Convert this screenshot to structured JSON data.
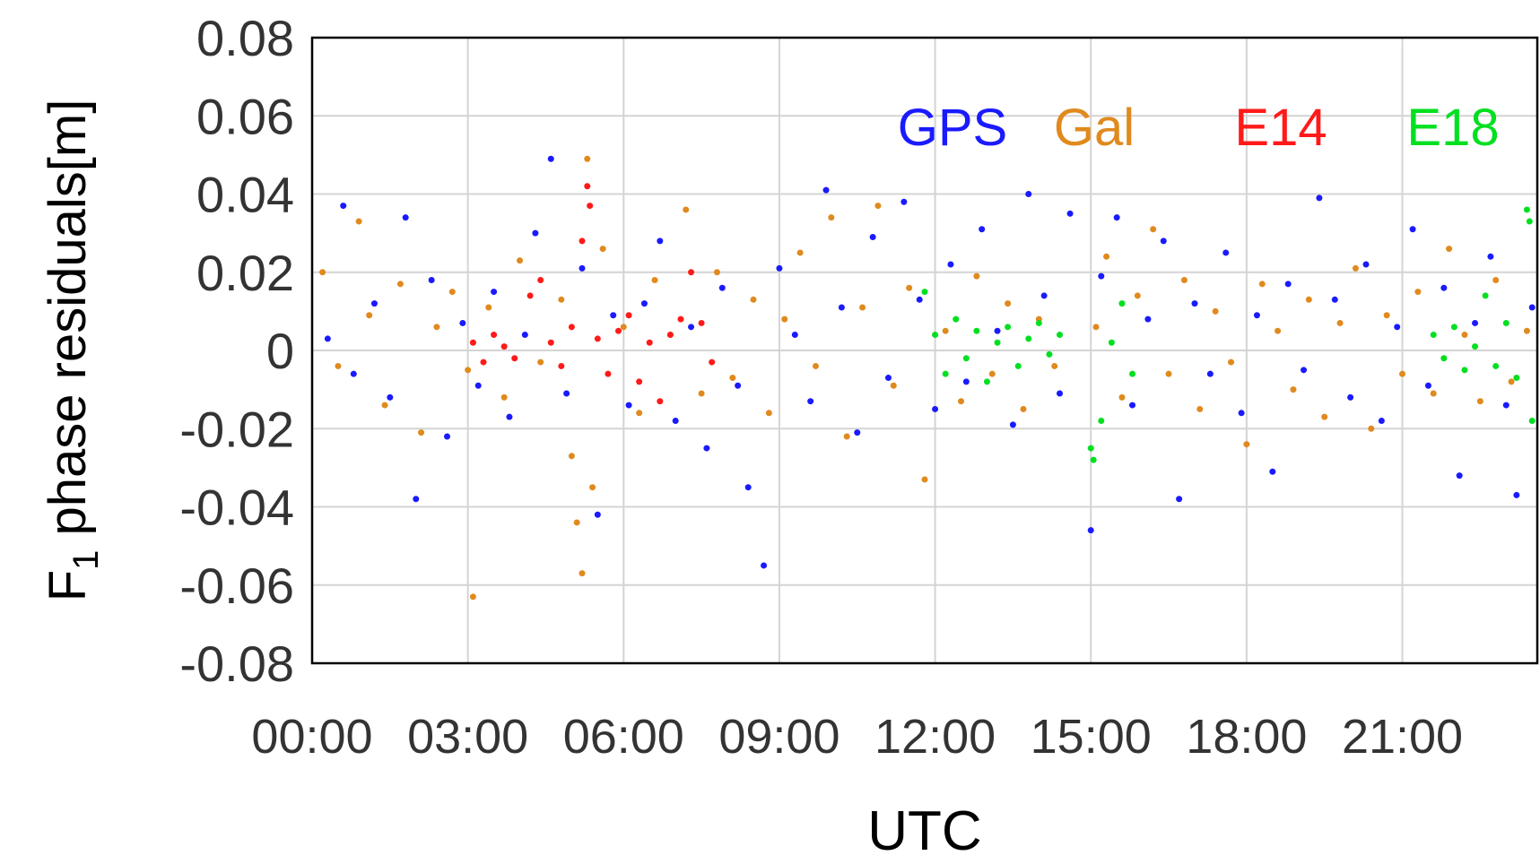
{
  "chart_data": {
    "type": "scatter",
    "title": "",
    "xlabel": "UTC",
    "ylabel": "F",
    "ylabel_subscript": "1",
    "ylabel_suffix": " phase residuals[m]",
    "x_unit": "hours",
    "xlim": [
      0,
      23.6
    ],
    "ylim": [
      -0.08,
      0.08
    ],
    "xticks": [
      0,
      3,
      6,
      9,
      12,
      15,
      18,
      21
    ],
    "xtick_labels": [
      "00:00",
      "03:00",
      "06:00",
      "09:00",
      "12:00",
      "15:00",
      "18:00",
      "21:00"
    ],
    "yticks": [
      -0.08,
      -0.06,
      -0.04,
      -0.02,
      0,
      0.02,
      0.04,
      0.06,
      0.08
    ],
    "ytick_labels": [
      "-0.08",
      "-0.06",
      "-0.04",
      "-0.02",
      "0",
      "0.02",
      "0.04",
      "0.06",
      "0.08"
    ],
    "grid": true,
    "legend_position": "top-right",
    "series": [
      {
        "name": "GPS",
        "color": "#1a1aff",
        "points": [
          [
            0.3,
            0.003
          ],
          [
            0.6,
            0.037
          ],
          [
            0.8,
            -0.006
          ],
          [
            1.2,
            0.012
          ],
          [
            1.5,
            -0.012
          ],
          [
            1.8,
            0.034
          ],
          [
            2.0,
            -0.038
          ],
          [
            2.3,
            0.018
          ],
          [
            2.6,
            -0.022
          ],
          [
            2.9,
            0.007
          ],
          [
            3.2,
            -0.009
          ],
          [
            3.5,
            0.015
          ],
          [
            3.8,
            -0.017
          ],
          [
            4.1,
            0.004
          ],
          [
            4.3,
            0.03
          ],
          [
            4.6,
            0.049
          ],
          [
            4.9,
            -0.011
          ],
          [
            5.2,
            0.021
          ],
          [
            5.5,
            -0.042
          ],
          [
            5.8,
            0.009
          ],
          [
            6.1,
            -0.014
          ],
          [
            6.4,
            0.012
          ],
          [
            6.7,
            0.028
          ],
          [
            7.0,
            -0.018
          ],
          [
            7.3,
            0.006
          ],
          [
            7.6,
            -0.025
          ],
          [
            7.9,
            0.016
          ],
          [
            8.2,
            -0.009
          ],
          [
            8.4,
            -0.035
          ],
          [
            8.7,
            -0.055
          ],
          [
            9.0,
            0.021
          ],
          [
            9.3,
            0.004
          ],
          [
            9.6,
            -0.013
          ],
          [
            9.9,
            0.041
          ],
          [
            10.2,
            0.011
          ],
          [
            10.5,
            -0.021
          ],
          [
            10.8,
            0.029
          ],
          [
            11.1,
            -0.007
          ],
          [
            11.4,
            0.038
          ],
          [
            11.7,
            0.013
          ],
          [
            12.0,
            -0.015
          ],
          [
            12.3,
            0.022
          ],
          [
            12.6,
            -0.008
          ],
          [
            12.9,
            0.031
          ],
          [
            13.2,
            0.005
          ],
          [
            13.5,
            -0.019
          ],
          [
            13.8,
            0.04
          ],
          [
            14.1,
            0.014
          ],
          [
            14.4,
            -0.011
          ],
          [
            14.6,
            0.035
          ],
          [
            15.0,
            -0.046
          ],
          [
            15.2,
            0.019
          ],
          [
            15.5,
            0.034
          ],
          [
            15.8,
            -0.014
          ],
          [
            16.1,
            0.008
          ],
          [
            16.4,
            0.028
          ],
          [
            16.7,
            -0.038
          ],
          [
            17.0,
            0.012
          ],
          [
            17.3,
            -0.006
          ],
          [
            17.6,
            0.025
          ],
          [
            17.9,
            -0.016
          ],
          [
            18.2,
            0.009
          ],
          [
            18.5,
            -0.031
          ],
          [
            18.8,
            0.017
          ],
          [
            19.1,
            -0.005
          ],
          [
            19.4,
            0.039
          ],
          [
            19.7,
            0.013
          ],
          [
            20.0,
            -0.012
          ],
          [
            20.3,
            0.022
          ],
          [
            20.6,
            -0.018
          ],
          [
            20.9,
            0.006
          ],
          [
            21.2,
            0.031
          ],
          [
            21.5,
            -0.009
          ],
          [
            21.8,
            0.016
          ],
          [
            22.1,
            -0.032
          ],
          [
            22.4,
            0.007
          ],
          [
            22.7,
            0.024
          ],
          [
            23.0,
            -0.014
          ],
          [
            23.2,
            -0.037
          ],
          [
            23.5,
            0.011
          ]
        ]
      },
      {
        "name": "Gal",
        "color": "#e08a1e",
        "points": [
          [
            0.2,
            0.02
          ],
          [
            0.5,
            -0.004
          ],
          [
            0.9,
            0.033
          ],
          [
            1.1,
            0.009
          ],
          [
            1.4,
            -0.014
          ],
          [
            1.7,
            0.017
          ],
          [
            2.1,
            -0.021
          ],
          [
            2.4,
            0.006
          ],
          [
            2.7,
            0.015
          ],
          [
            3.0,
            -0.005
          ],
          [
            3.1,
            -0.063
          ],
          [
            3.4,
            0.011
          ],
          [
            3.7,
            -0.012
          ],
          [
            4.0,
            0.023
          ],
          [
            4.4,
            -0.003
          ],
          [
            4.8,
            0.013
          ],
          [
            5.0,
            -0.027
          ],
          [
            5.1,
            -0.044
          ],
          [
            5.2,
            -0.057
          ],
          [
            5.3,
            0.049
          ],
          [
            5.4,
            -0.035
          ],
          [
            5.6,
            0.026
          ],
          [
            6.0,
            0.006
          ],
          [
            6.3,
            -0.016
          ],
          [
            6.6,
            0.018
          ],
          [
            6.9,
            0.004
          ],
          [
            7.2,
            0.036
          ],
          [
            7.5,
            -0.011
          ],
          [
            7.8,
            0.02
          ],
          [
            8.1,
            -0.007
          ],
          [
            8.5,
            0.013
          ],
          [
            8.8,
            -0.016
          ],
          [
            9.1,
            0.008
          ],
          [
            9.4,
            0.025
          ],
          [
            9.7,
            -0.004
          ],
          [
            10.0,
            0.034
          ],
          [
            10.3,
            -0.022
          ],
          [
            10.6,
            0.011
          ],
          [
            10.9,
            0.037
          ],
          [
            11.2,
            -0.009
          ],
          [
            11.5,
            0.016
          ],
          [
            11.8,
            -0.033
          ],
          [
            12.2,
            0.005
          ],
          [
            12.5,
            -0.013
          ],
          [
            12.8,
            0.019
          ],
          [
            13.1,
            -0.006
          ],
          [
            13.4,
            0.012
          ],
          [
            13.7,
            -0.015
          ],
          [
            14.0,
            0.008
          ],
          [
            14.3,
            -0.004
          ],
          [
            15.1,
            0.006
          ],
          [
            15.3,
            0.024
          ],
          [
            15.6,
            -0.012
          ],
          [
            15.9,
            0.014
          ],
          [
            16.2,
            0.031
          ],
          [
            16.5,
            -0.006
          ],
          [
            16.8,
            0.018
          ],
          [
            17.1,
            -0.015
          ],
          [
            17.4,
            0.01
          ],
          [
            17.7,
            -0.003
          ],
          [
            18.0,
            -0.024
          ],
          [
            18.3,
            0.017
          ],
          [
            18.6,
            0.005
          ],
          [
            18.9,
            -0.01
          ],
          [
            19.2,
            0.013
          ],
          [
            19.5,
            -0.017
          ],
          [
            19.8,
            0.007
          ],
          [
            20.1,
            0.021
          ],
          [
            20.4,
            -0.02
          ],
          [
            20.7,
            0.009
          ],
          [
            21.0,
            -0.006
          ],
          [
            21.3,
            0.015
          ],
          [
            21.6,
            -0.011
          ],
          [
            21.9,
            0.026
          ],
          [
            22.2,
            0.004
          ],
          [
            22.5,
            -0.013
          ],
          [
            22.8,
            0.018
          ],
          [
            23.1,
            -0.008
          ],
          [
            23.4,
            0.005
          ]
        ]
      },
      {
        "name": "E14",
        "color": "#ff1a1a",
        "points": [
          [
            3.1,
            0.002
          ],
          [
            3.3,
            -0.003
          ],
          [
            3.5,
            0.004
          ],
          [
            3.7,
            0.001
          ],
          [
            3.9,
            -0.002
          ],
          [
            4.2,
            0.014
          ],
          [
            4.4,
            0.018
          ],
          [
            4.6,
            0.002
          ],
          [
            4.8,
            -0.004
          ],
          [
            5.0,
            0.006
          ],
          [
            5.2,
            0.028
          ],
          [
            5.3,
            0.042
          ],
          [
            5.35,
            0.037
          ],
          [
            5.5,
            0.003
          ],
          [
            5.7,
            -0.006
          ],
          [
            5.9,
            0.005
          ],
          [
            6.1,
            0.009
          ],
          [
            6.3,
            -0.008
          ],
          [
            6.5,
            0.002
          ],
          [
            6.7,
            -0.013
          ],
          [
            6.9,
            0.004
          ],
          [
            7.1,
            0.008
          ],
          [
            7.3,
            0.02
          ],
          [
            7.5,
            0.007
          ],
          [
            7.7,
            -0.003
          ]
        ]
      },
      {
        "name": "E18",
        "color": "#00e020",
        "points": [
          [
            11.8,
            0.015
          ],
          [
            12.0,
            0.004
          ],
          [
            12.2,
            -0.006
          ],
          [
            12.4,
            0.008
          ],
          [
            12.6,
            -0.002
          ],
          [
            12.8,
            0.005
          ],
          [
            13.0,
            -0.008
          ],
          [
            13.2,
            0.002
          ],
          [
            13.4,
            0.006
          ],
          [
            13.6,
            -0.004
          ],
          [
            13.8,
            0.003
          ],
          [
            14.0,
            0.007
          ],
          [
            14.2,
            -0.001
          ],
          [
            14.4,
            0.004
          ],
          [
            15.0,
            -0.025
          ],
          [
            15.05,
            -0.028
          ],
          [
            15.2,
            -0.018
          ],
          [
            15.4,
            0.002
          ],
          [
            15.6,
            0.012
          ],
          [
            15.8,
            -0.006
          ],
          [
            21.6,
            0.004
          ],
          [
            21.8,
            -0.002
          ],
          [
            22.0,
            0.006
          ],
          [
            22.2,
            -0.005
          ],
          [
            22.4,
            0.001
          ],
          [
            22.6,
            0.014
          ],
          [
            22.8,
            -0.004
          ],
          [
            23.0,
            0.007
          ],
          [
            23.2,
            -0.007
          ],
          [
            23.4,
            0.036
          ],
          [
            23.45,
            0.033
          ],
          [
            23.5,
            -0.018
          ]
        ]
      }
    ]
  }
}
